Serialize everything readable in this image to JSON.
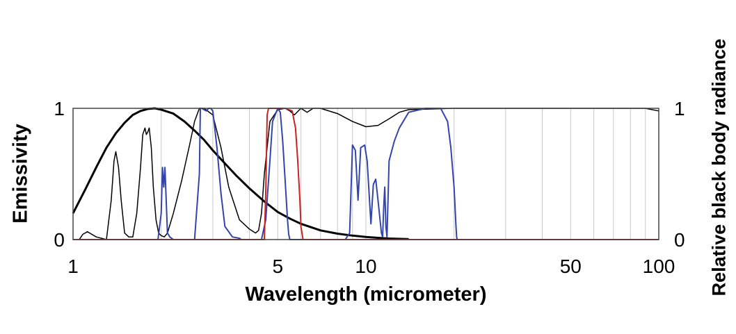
{
  "chart_data": {
    "type": "line",
    "title": "",
    "xlabel": "Wavelength (micrometer)",
    "ylabel": "Emissivity",
    "y2label": "Relative black body radiance",
    "xscale": "log",
    "xlim": [
      1,
      100
    ],
    "ylim": [
      0,
      1
    ],
    "x_tick_labels": [
      "1",
      "5",
      "10",
      "50",
      "100"
    ],
    "x_tick_values": [
      1,
      5,
      10,
      50,
      100
    ],
    "y_tick_labels": [
      "0",
      "1"
    ],
    "y2_tick_labels": [
      "0",
      "1"
    ],
    "grid": "vertical",
    "gridlines_x": [
      2,
      3,
      4,
      5,
      6,
      7,
      8,
      9,
      10,
      20,
      30,
      40,
      50,
      60,
      70,
      80,
      90
    ],
    "series": [
      {
        "color": "#000000",
        "stroke_width": 3,
        "x": [
          1,
          1.1,
          1.2,
          1.3,
          1.4,
          1.5,
          1.6,
          1.7,
          1.8,
          1.9,
          2,
          2.2,
          2.4,
          2.6,
          2.8,
          3,
          3.3,
          3.6,
          4,
          4.5,
          5,
          5.5,
          6,
          7,
          8,
          9,
          10,
          11,
          12,
          14
        ],
        "y": [
          0.2,
          0.38,
          0.55,
          0.7,
          0.81,
          0.89,
          0.95,
          0.98,
          0.995,
          1.0,
          0.99,
          0.96,
          0.9,
          0.83,
          0.76,
          0.68,
          0.58,
          0.49,
          0.39,
          0.29,
          0.21,
          0.16,
          0.12,
          0.07,
          0.045,
          0.03,
          0.02,
          0.013,
          0.008,
          0.003
        ]
      },
      {
        "color": "#000000",
        "stroke_width": 1.5,
        "x": [
          1,
          1.05,
          1.08,
          1.12,
          1.2,
          1.3,
          1.35,
          1.38,
          1.4,
          1.43,
          1.46,
          1.5,
          1.55,
          1.6,
          1.65,
          1.7,
          1.73,
          1.76,
          1.78,
          1.8,
          1.82,
          1.85,
          1.88,
          1.92,
          1.96,
          2,
          2.05,
          2.1,
          2.2,
          2.35,
          2.5,
          2.6,
          2.7,
          2.8,
          3,
          3.2,
          3.4,
          3.7,
          4,
          4.2,
          4.3,
          4.4,
          4.5,
          4.7,
          5,
          5.3,
          5.5,
          5.7,
          6,
          6.3,
          6.6,
          7,
          8,
          9,
          10,
          11,
          12,
          13,
          14,
          20,
          30,
          50,
          70,
          90,
          100
        ],
        "y": [
          0,
          0,
          0.04,
          0.06,
          0.02,
          0,
          0.3,
          0.6,
          0.67,
          0.55,
          0.3,
          0.05,
          0.02,
          0.02,
          0.2,
          0.55,
          0.8,
          0.85,
          0.8,
          0.82,
          0.85,
          0.7,
          0.4,
          0.15,
          0.05,
          0.03,
          0.02,
          0.05,
          0.2,
          0.45,
          0.72,
          0.9,
          1.0,
          1.0,
          0.95,
          0.7,
          0.4,
          0.15,
          0.08,
          0.05,
          0.07,
          0.2,
          0.5,
          0.9,
          0.99,
          1.0,
          0.98,
          0.95,
          1.0,
          0.97,
          1.0,
          1.0,
          0.96,
          0.9,
          0.86,
          0.87,
          0.92,
          0.97,
          0.99,
          1.0,
          1.0,
          1.0,
          1.0,
          1.0,
          0.98
        ]
      },
      {
        "color": "#3344aa",
        "stroke_width": 2,
        "x": [
          1,
          1.5,
          1.6,
          1.95,
          2.0,
          2.02,
          2.04,
          2.06,
          2.08,
          2.1,
          2.14,
          2.2,
          2.6,
          2.7,
          2.72,
          2.75,
          2.85,
          2.9,
          2.95,
          3.0,
          3.1,
          3.2,
          3.3,
          3.5,
          3.7,
          3.75,
          3.8,
          4.2,
          4.4,
          4.55,
          4.7,
          4.8,
          5.0,
          5.1,
          5.2,
          5.3,
          5.4,
          5.45,
          5.5,
          8.5,
          8.8,
          9.0,
          9.2,
          9.4,
          9.6,
          9.9,
          10.1,
          10.4,
          10.6,
          10.8,
          11.0,
          11.3,
          11.4,
          11.5,
          11.6,
          11.7,
          11.8,
          12,
          12.5,
          13,
          14,
          16,
          18,
          19,
          19.5,
          20,
          20.3,
          20.4,
          20.5,
          100
        ],
        "y": [
          0,
          0,
          0,
          0,
          0.2,
          0.55,
          0.4,
          0.55,
          0.3,
          0.05,
          0.02,
          0,
          0,
          0.5,
          1.0,
          1.0,
          0.98,
          1.0,
          1.0,
          0.98,
          0.7,
          0.35,
          0.1,
          0.02,
          0.01,
          0,
          0,
          0,
          0,
          0.15,
          0.6,
          0.9,
          1.0,
          0.97,
          0.75,
          0.45,
          0.15,
          0.04,
          0,
          0,
          0.05,
          0.72,
          0.68,
          0.3,
          0.7,
          0.72,
          0.6,
          0.12,
          0.42,
          0.46,
          0.3,
          0.05,
          0.02,
          0.25,
          0.4,
          0.1,
          0.02,
          0.6,
          0.75,
          0.85,
          0.97,
          1.0,
          1.0,
          0.9,
          0.7,
          0.4,
          0.1,
          0.02,
          0,
          0
        ]
      },
      {
        "color": "#cc2222",
        "stroke_width": 2,
        "x": [
          1,
          4.5,
          4.55,
          4.6,
          4.65,
          4.7,
          5.3,
          5.6,
          5.75,
          5.85,
          5.95,
          6.0,
          6.1,
          100
        ],
        "y": [
          0,
          0,
          0.35,
          0.95,
          1.0,
          1.0,
          1.0,
          0.98,
          0.85,
          0.6,
          0.3,
          0.1,
          0,
          0
        ]
      }
    ]
  }
}
